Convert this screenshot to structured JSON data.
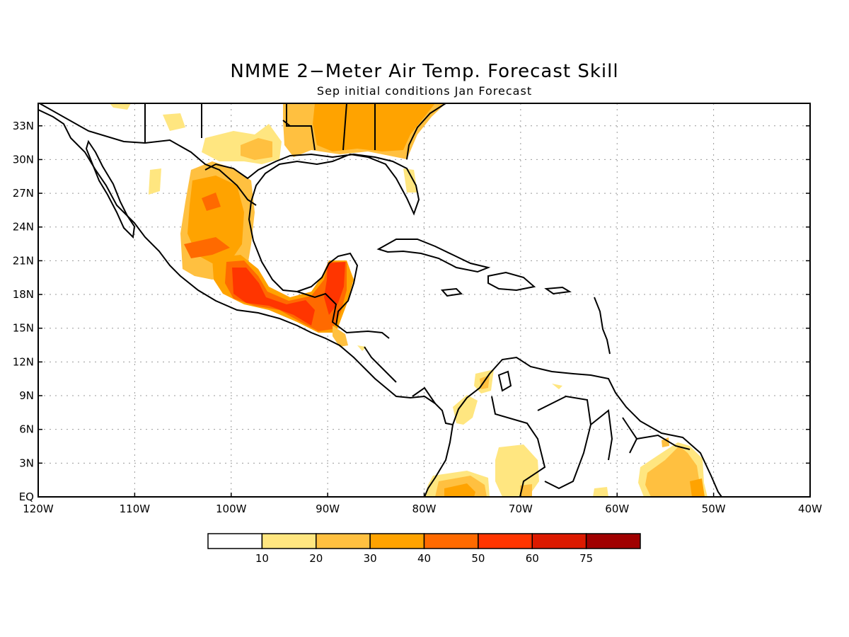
{
  "title": "NMME 2−Meter Air Temp. Forecast Skill",
  "subtitle": "Sep initial conditions  Jan Forecast",
  "map": {
    "lon_range": [
      -120,
      -40
    ],
    "lat_range": [
      0,
      35
    ],
    "lat_labels": [
      "33N",
      "30N",
      "27N",
      "24N",
      "21N",
      "18N",
      "15N",
      "12N",
      "9N",
      "6N",
      "3N",
      "EQ"
    ],
    "lat_values": [
      33,
      30,
      27,
      24,
      21,
      18,
      15,
      12,
      9,
      6,
      3,
      0
    ],
    "lon_labels": [
      "120W",
      "110W",
      "100W",
      "90W",
      "80W",
      "70W",
      "60W",
      "50W",
      "40W"
    ],
    "lon_values": [
      -120,
      -110,
      -100,
      -90,
      -80,
      -70,
      -60,
      -50,
      -40
    ],
    "grid": "dotted"
  },
  "legend": {
    "labels": [
      "10",
      "20",
      "30",
      "40",
      "50",
      "60",
      "75"
    ],
    "colors": [
      "#ffffff",
      "#ffe680",
      "#ffc040",
      "#ffa300",
      "#ff6a00",
      "#ff3500",
      "#dc1a00",
      "#a00000"
    ]
  }
}
